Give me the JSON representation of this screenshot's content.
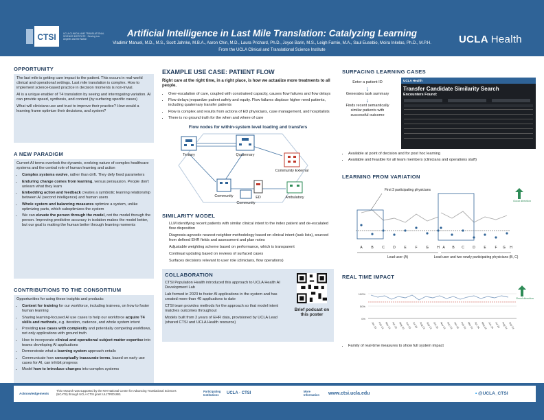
{
  "header": {
    "logo_acronym": "CTSI",
    "logo_text": "UCLA CLINICAL AND TRANSLATIONAL SCIENCE INSTITUTE · Serving Los Angeles and the Nation",
    "title": "Artificial Intelligence in Last Mile Translation: Catalyzing Learning",
    "authors": "Vladimir Manuel, M.D., M.S., Scott Jahnke, M.B.A., Aaron Chin, M.D., Laura Prichard, Ph.D., Joyce Barin, M.S., Leigh Farnie, M.A., Saul Eusebio, Moira Inkelas, Ph.D., M.P.H.",
    "affiliation": "From the UCLA Clinical and Translational Science Institute",
    "brand": "UCLA",
    "brand_suffix": "Health"
  },
  "opportunity": {
    "heading": "OPPORTUNITY",
    "p1": "The last mile is getting care impact to the patient. This occurs in real-world clinical and operational settings. Last mile translation is complex. How to implement science-based practice in decision moments is non-trivial.",
    "p2": "AI is a unique enabler of T4 translation by seeing and interrogating variation. AI can provide speed, synthesis, and context (by surfacing specific cases)",
    "p3": "What will clinicians use and trust to improve their practice? How would a learning frame optimize their decisions, and system?"
  },
  "paradigm": {
    "heading": "A NEW PARADIGM",
    "intro": "Current AI terms overlook the dynamic, evolving nature of complex healthcare systems and the central role of human learning and action",
    "items": [
      {
        "bold": "Complex systems evolve",
        "rest": ", rather than drift. They defy fixed parameters"
      },
      {
        "bold": "Enduring change comes from learning",
        "rest": ", versus persuasion. People don't unlearn what they learn"
      },
      {
        "bold": "Embedding action and feedback",
        "rest": " creates a symbiotic learning relationship between AI (second intelligence) and human users"
      },
      {
        "bold": "Whole system and balancing measures",
        "rest": " optimize a system, unlike optimizing parts, which suboptimizes the system"
      },
      {
        "bold": "",
        "pre": "We can ",
        "bold2": "elevate the person through the model",
        "rest": ", not the model through the person. Improving predictive accuracy in isolation makes the model better, but our goal is making the human better through learning moments"
      }
    ]
  },
  "contributions": {
    "heading": "CONTRIBUTIONS TO THE CONSORTIUM",
    "intro": "Opportunities for using these insights and products:",
    "items": [
      {
        "pre": "",
        "bold": "Content for training",
        "rest": " for our workforce, including trainees, on how to foster human learning"
      },
      {
        "pre": "Sharing learning-focused AI use cases to help our workforce ",
        "bold": "acquire T4 skills and methods",
        "rest": ", e.g. iteration, cadence, and whole system intent"
      },
      {
        "pre": "Providing ",
        "bold": "use cases with complexity",
        "rest": " and potentially competing workflows, not only applications with ground truth"
      },
      {
        "pre": "How to incorporate ",
        "bold": "clinical and operational subject matter expertise",
        "rest": " into teams developing AI applications"
      },
      {
        "pre": "Demonstrate what a ",
        "bold": "learning system",
        "rest": " approach entails"
      },
      {
        "pre": "Communicate how ",
        "bold": "conceptually inaccurate terms",
        "rest": ", based on early use cases for AI, can inhibit progress"
      },
      {
        "pre": "Model ",
        "bold": "how to introduce changes",
        "rest": " into complex systems"
      }
    ]
  },
  "patient_flow": {
    "heading": "EXAMPLE USE CASE: PATIENT FLOW",
    "lead": "Right care at the right time, in a right place, is how we actualize more treatments to all people.",
    "bullets": [
      "Over-escalation of care, coupled with constrained capacity, causes flow failures and flow delays",
      "Flow delays jeopardize patient safety and equity. Flow failures displace higher need patients, including quaternary transfer patients",
      "Flow is complex and results from actions of ED physicians, case management, and hospitalists",
      "There is no ground truth for the when and where of care"
    ],
    "diagram_title": "Flow nodes for within-system level loading and transfers",
    "nodes": {
      "tertiary": "Tertiary",
      "quaternary": "Quaternary",
      "community_external": "Community External",
      "community1": "Community",
      "ed": "ED",
      "ambulatory": "Ambulatory",
      "community2": "Community"
    }
  },
  "similarity": {
    "heading": "SIMILARITY MODEL",
    "items": [
      "LLM identifying recent patients with similar clinical intent to the index patient and de-escalated flow disposition",
      "Diagnosis-agnostic nearest neighbor methodology based on clinical intent (task lists), sourced from defined EHR fields and assessment and plan notes",
      "Adjustable weighting scheme based on performance, which is transparent",
      "Continual updating based on reviews of surfaced cases",
      "Surfaces decisions relevant to user role (clinicians, flow operations)"
    ]
  },
  "collaboration": {
    "heading": "COLLABORATION",
    "items": [
      "CTSI Population Health introduced this approach to UCLA Health AI Development Lab",
      "Lab formed in 2023 to foster AI applications in the system and has created more than 40 applications to date",
      "CTSI team provides methods for the approach so that model intent matches outcomes throughout",
      "Models built from 2 years of EHR data, provisioned by UCLA Lead (shared CTSI and UCLA Health resource)"
    ],
    "qr_caption": "Brief podcast on this poster"
  },
  "surfacing": {
    "heading": "SURFACING LEARNING CASES",
    "steps": [
      "Enter a patient ID",
      "Generates task summary",
      "Finds recent semantically similar patients with successful outcome"
    ],
    "screen_brand": "UCLA Health",
    "screen_title": "Transfer Candidate Similarity Search",
    "screen_sub": "Encounters Found:",
    "bullets": [
      "Available at point of decision and for post hoc learning",
      "Available and feasible for all team members (clinicians and operations staff)"
    ]
  },
  "variation": {
    "heading": "LEARNING FROM VARIATION",
    "annot": "First 3 participating physicians",
    "legend": "Good direction",
    "labels": [
      "A",
      "B",
      "C",
      "D",
      "E",
      "F",
      "G",
      "H",
      "A",
      "B",
      "C",
      "D",
      "E",
      "F",
      "G",
      "H"
    ],
    "group1": "Lead user (A)",
    "group2": "Lead user and two newly participating physicians (B, C)"
  },
  "realtime": {
    "heading": "REAL TIME IMPACT",
    "legend": "Good direction",
    "y_ticks": [
      "100%",
      "50%",
      "0%"
    ],
    "months": [
      "Jan 23",
      "Feb 23",
      "Mar 23",
      "Apr 23",
      "May 23",
      "Jun 23",
      "Jul 23",
      "Aug 23",
      "Sep 23",
      "Oct 23",
      "Nov 23",
      "Dec 23",
      "Jan 24",
      "Feb 24",
      "Mar 24",
      "Apr 24",
      "May 24",
      "Jun 24",
      "Jul 24",
      "Aug 24",
      "Sep 24"
    ],
    "bullet": "Family of real-time measures to show full system impact"
  },
  "footer": {
    "ack_label": "Acknowledgements",
    "ack_text": "This research was supported by the NIH National Center for Advancing Translational Sciences (NCATS) through UCLA CTSI grant UL1TR001881",
    "inst_label": "Participating Institutions",
    "inst_text": "UCLA · CTSI",
    "more_label": "More Information",
    "website": "www.ctsi.ucla.edu",
    "handle": "@UCLA_CTSI"
  }
}
